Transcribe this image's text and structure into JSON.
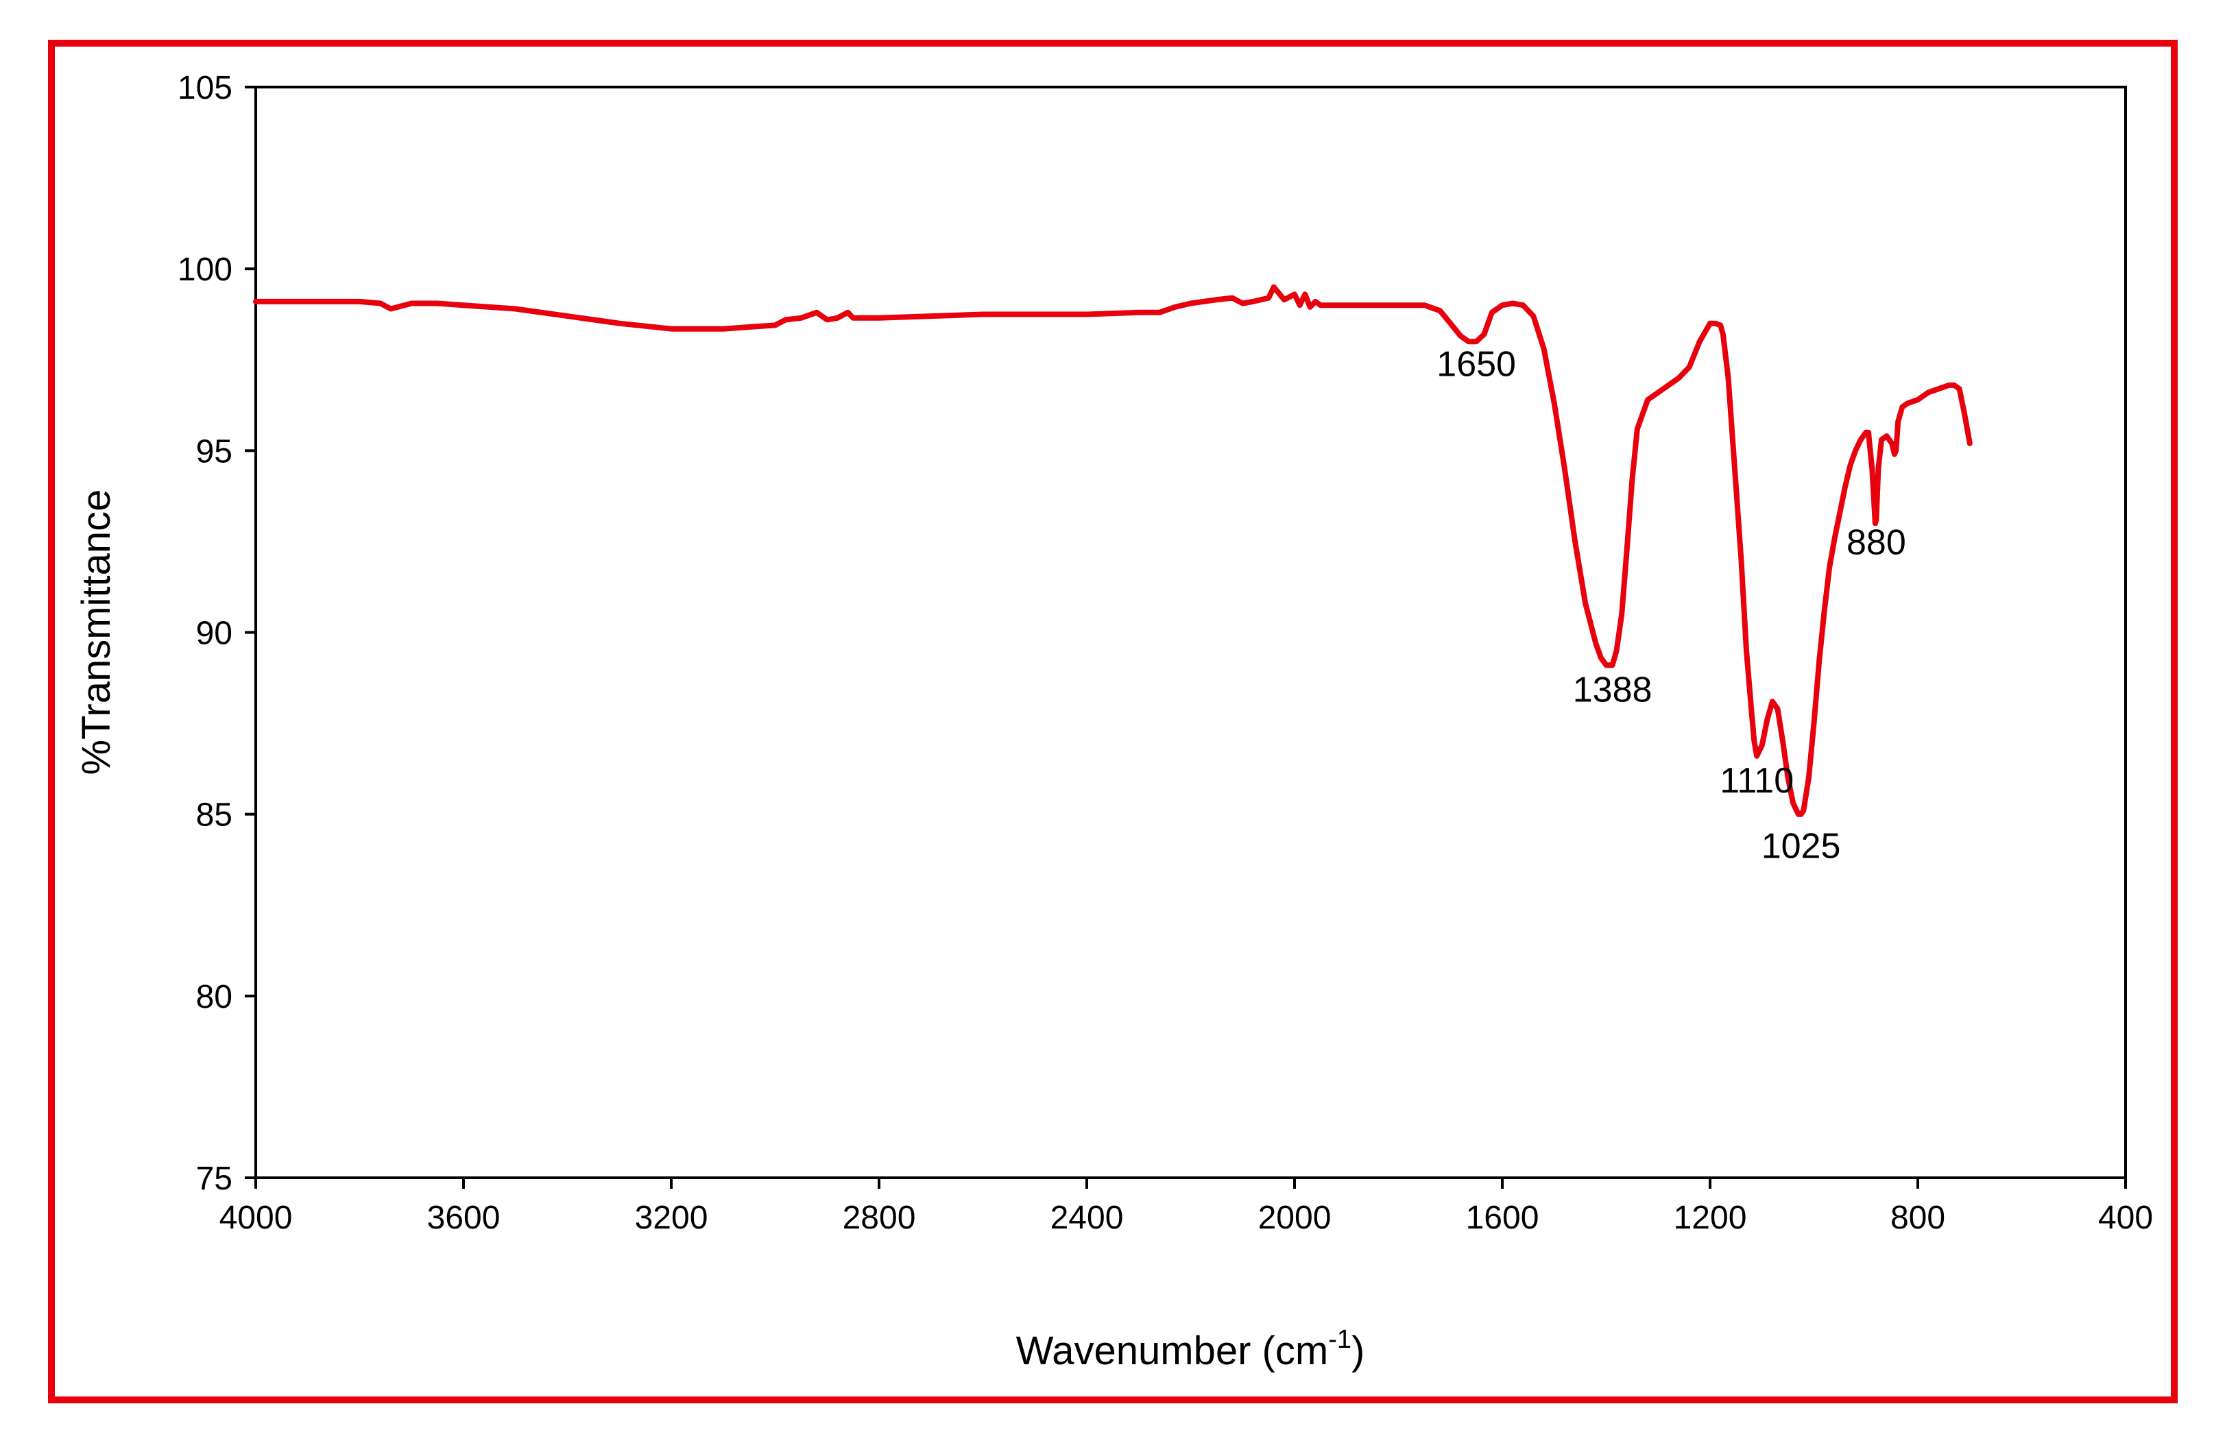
{
  "chart_data": {
    "type": "line",
    "title": "",
    "xlabel": "Wavenumber (cm",
    "xlabel_sup": "-1",
    "xlabel_close": ")",
    "ylabel": "%Transmittance",
    "xlim": [
      4000,
      400
    ],
    "x_reversed": true,
    "ylim": [
      75,
      105
    ],
    "x_ticks": [
      "4000",
      "3600",
      "3200",
      "2800",
      "2400",
      "2000",
      "1600",
      "1200",
      "800",
      "400"
    ],
    "y_ticks": [
      "105",
      "100",
      "95",
      "90",
      "85",
      "80",
      "75"
    ],
    "grid": false,
    "legend": "none",
    "colors": {
      "line": "#e8000d",
      "frame": "#e8000d",
      "axes": "#000000"
    },
    "series": [
      {
        "x": [
          4000,
          3900,
          3800,
          3760,
          3740,
          3700,
          3650,
          3600,
          3500,
          3400,
          3300,
          3200,
          3150,
          3100,
          3050,
          3000,
          2980,
          2950,
          2920,
          2900,
          2880,
          2860,
          2850,
          2800,
          2700,
          2600,
          2500,
          2400,
          2300,
          2260,
          2230,
          2200,
          2150,
          2120,
          2100,
          2080,
          2050,
          2040,
          2020,
          2000,
          1990,
          1980,
          1970,
          1960,
          1950,
          1900,
          1850,
          1800,
          1750,
          1720,
          1700,
          1680,
          1665,
          1650,
          1635,
          1620,
          1600,
          1580,
          1560,
          1540,
          1520,
          1500,
          1480,
          1460,
          1440,
          1420,
          1410,
          1400,
          1395,
          1388,
          1380,
          1370,
          1360,
          1350,
          1340,
          1320,
          1300,
          1280,
          1260,
          1240,
          1220,
          1200,
          1190,
          1180,
          1175,
          1165,
          1150,
          1140,
          1130,
          1120,
          1115,
          1110,
          1100,
          1090,
          1080,
          1070,
          1060,
          1050,
          1040,
          1030,
          1025,
          1020,
          1010,
          1000,
          990,
          980,
          970,
          960,
          950,
          940,
          930,
          920,
          910,
          900,
          895,
          888,
          882,
          880,
          876,
          870,
          860,
          850,
          845,
          842,
          838,
          830,
          820,
          800,
          780,
          760,
          740,
          730,
          720,
          710,
          700
        ],
        "y": [
          99.1,
          99.1,
          99.1,
          99.05,
          98.9,
          99.05,
          99.05,
          99.0,
          98.9,
          98.7,
          98.5,
          98.35,
          98.35,
          98.35,
          98.4,
          98.45,
          98.6,
          98.65,
          98.8,
          98.6,
          98.65,
          98.8,
          98.65,
          98.65,
          98.7,
          98.75,
          98.75,
          98.75,
          98.8,
          98.8,
          98.95,
          99.05,
          99.15,
          99.2,
          99.05,
          99.1,
          99.2,
          99.5,
          99.15,
          99.3,
          99.0,
          99.3,
          98.95,
          99.1,
          99.0,
          99.0,
          99.0,
          99.0,
          99.0,
          98.85,
          98.5,
          98.15,
          98.0,
          98.0,
          98.2,
          98.8,
          99.0,
          99.05,
          99.0,
          98.7,
          97.8,
          96.3,
          94.5,
          92.5,
          90.8,
          89.7,
          89.3,
          89.1,
          89.1,
          89.1,
          89.5,
          90.5,
          92.3,
          94.2,
          95.6,
          96.4,
          96.6,
          96.8,
          97.0,
          97.3,
          98.0,
          98.5,
          98.5,
          98.45,
          98.2,
          97.0,
          94.0,
          92.0,
          89.5,
          87.8,
          87.0,
          86.6,
          86.9,
          87.6,
          88.1,
          87.9,
          87.0,
          86.0,
          85.3,
          85.0,
          85.0,
          85.1,
          86.0,
          87.5,
          89.2,
          90.6,
          91.8,
          92.6,
          93.3,
          94.0,
          94.6,
          95.0,
          95.3,
          95.5,
          95.5,
          94.5,
          93.0,
          93.1,
          94.5,
          95.3,
          95.4,
          95.2,
          94.9,
          95.0,
          95.8,
          96.2,
          96.3,
          96.4,
          96.6,
          96.7,
          96.8,
          96.8,
          96.7,
          96.0,
          95.2
        ]
      }
    ],
    "annotations": [
      {
        "text": "1650",
        "x": 1650,
        "y": 97.05
      },
      {
        "text": "1388",
        "x": 1388,
        "y": 88.1
      },
      {
        "text": "1110",
        "x": 1110,
        "y": 85.6
      },
      {
        "text": "1025",
        "x": 1025,
        "y": 83.8
      },
      {
        "text": "880",
        "x": 880,
        "y": 92.15
      }
    ]
  }
}
